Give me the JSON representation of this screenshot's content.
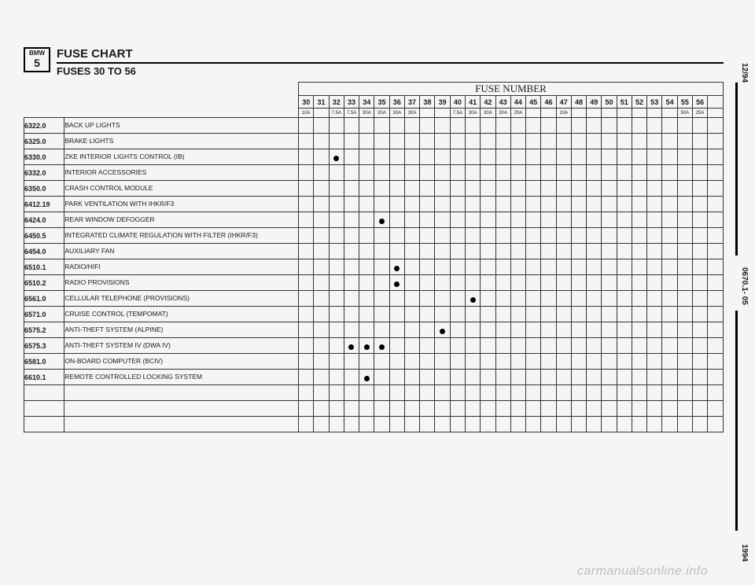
{
  "logo": {
    "brand": "BMW",
    "series": "5"
  },
  "title": "FUSE CHART",
  "subtitle": "FUSES 30 TO 56",
  "fuse_header": "FUSE NUMBER",
  "side": {
    "date": "12/94",
    "doc": "0670.1- 05",
    "year": "1994"
  },
  "watermark": "carmanualsonline.info",
  "fuse_numbers": [
    "30",
    "31",
    "32",
    "33",
    "34",
    "35",
    "36",
    "37",
    "38",
    "39",
    "40",
    "41",
    "42",
    "43",
    "44",
    "45",
    "46",
    "47",
    "48",
    "49",
    "50",
    "51",
    "52",
    "53",
    "54",
    "55",
    "56",
    ""
  ],
  "fuse_amps": [
    "10A",
    "",
    "7.5A",
    "7.5A",
    "30A",
    "30A",
    "30A",
    "30A",
    "",
    "",
    "7.5A",
    "30A",
    "30A",
    "30A",
    "20A",
    "",
    "",
    "10A",
    "",
    "",
    "",
    "",
    "",
    "",
    "",
    "50A",
    "25A",
    ""
  ],
  "rows": [
    {
      "code": "6322.0",
      "desc": "BACK UP LIGHTS",
      "dots": []
    },
    {
      "code": "6325.0",
      "desc": "BRAKE LIGHTS",
      "dots": []
    },
    {
      "code": "6330.0",
      "desc": "ZKE INTERIOR LIGHTS CONTROL (IB)",
      "dots": [
        32
      ]
    },
    {
      "code": "6332.0",
      "desc": "INTERIOR ACCESSORIES",
      "dots": []
    },
    {
      "code": "6350.0",
      "desc": "CRASH CONTROL MODULE",
      "dots": []
    },
    {
      "code": "6412.19",
      "desc": "PARK VENTILATION WITH IHKR/F3",
      "dots": []
    },
    {
      "code": "6424.0",
      "desc": "REAR WINDOW DEFOGGER",
      "dots": [
        35
      ]
    },
    {
      "code": "6450.5",
      "desc": "INTEGRATED CLIMATE REGULATION WITH FILTER (IHKR/F3)",
      "dots": []
    },
    {
      "code": "6454.0",
      "desc": "AUXILIARY FAN",
      "dots": []
    },
    {
      "code": "6510.1",
      "desc": "RADIO/HIFI",
      "dots": [
        36
      ]
    },
    {
      "code": "6510.2",
      "desc": "RADIO PROVISIONS",
      "dots": [
        36
      ]
    },
    {
      "code": "6561.0",
      "desc": "CELLULAR TELEPHONE (PROVISIONS)",
      "dots": [
        41
      ]
    },
    {
      "code": "6571.0",
      "desc": "CRUISE CONTROL (TEMPOMAT)",
      "dots": []
    },
    {
      "code": "6575.2",
      "desc": "ANTI-THEFT SYSTEM (ALPINE)",
      "dots": [
        39
      ]
    },
    {
      "code": "6575.3",
      "desc": "ANTI-THEFT SYSTEM IV (DWA IV)",
      "dots": [
        33,
        34,
        35
      ]
    },
    {
      "code": "6581.0",
      "desc": "ON-BOARD COMPUTER (BCIV)",
      "dots": []
    },
    {
      "code": "6610.1",
      "desc": "REMOTE CONTROLLED LOCKING SYSTEM",
      "dots": [
        34
      ]
    },
    {
      "code": "",
      "desc": "",
      "dots": []
    },
    {
      "code": "",
      "desc": "",
      "dots": []
    },
    {
      "code": "",
      "desc": "",
      "dots": []
    }
  ]
}
